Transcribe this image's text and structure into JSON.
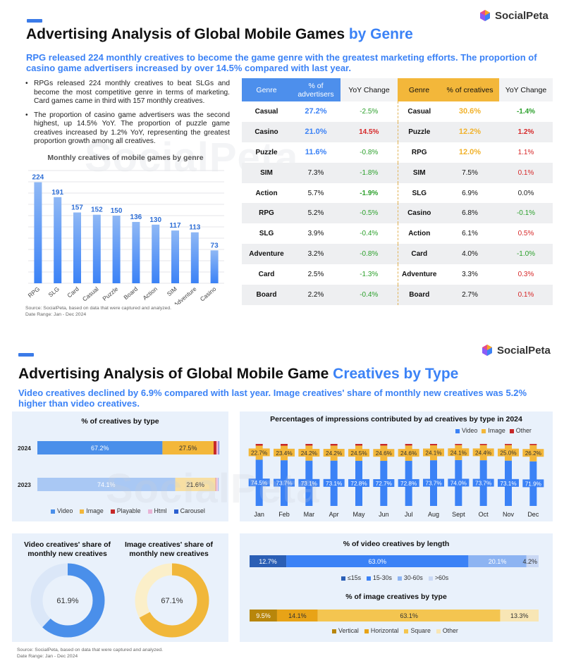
{
  "brand": {
    "name": "SocialPeta",
    "watermark": "SocialPeta"
  },
  "colors": {
    "blue": "#3b82f6",
    "gold": "#f3b73a",
    "red": "#c62828",
    "pink": "#e8b4d6",
    "light_blue": "#a9c8f4"
  },
  "top": {
    "title_main": "Advertising Analysis of Global Mobile Games ",
    "title_hl": "by Genre",
    "headline": "RPG released 224 monthly creatives to become the game genre with the greatest marketing efforts.  The proportion of casino game advertisers increased by over 14.5% compared with last year.",
    "bullets": [
      "RPGs released 224 monthly creatives to beat SLGs and become the most competitive genre in terms of marketing. Card games came in third with 157 monthly creatives.",
      "The proportion of casino game advertisers was the second highest, up 14.5% YoY. The proportion of puzzle game creatives increased by 1.2% YoY, representing the greatest proportion growth among all creatives."
    ],
    "source": "Source: SocialPeta, based on data that were captured and analyzed.",
    "date_range": "Date Range: Jan - Dec 2024",
    "table_headers": [
      "Genre",
      "% of advertisers",
      "YoY Change",
      "Genre",
      "% of creatives",
      "YoY Change"
    ],
    "table_rows": [
      [
        "Casual",
        "27.2%",
        "-2.5%",
        "Casual",
        "30.6%",
        "-1.4%"
      ],
      [
        "Casino",
        "21.0%",
        "14.5%",
        "Puzzle",
        "12.2%",
        "1.2%"
      ],
      [
        "Puzzle",
        "11.6%",
        "-0.8%",
        "RPG",
        "12.0%",
        "1.1%"
      ],
      [
        "SIM",
        "7.3%",
        "-1.8%",
        "SIM",
        "7.5%",
        "0.1%"
      ],
      [
        "Action",
        "5.7%",
        "-1.9%",
        "SLG",
        "6.9%",
        "0.0%"
      ],
      [
        "RPG",
        "5.2%",
        "-0.5%",
        "Casino",
        "6.8%",
        "-0.1%"
      ],
      [
        "SLG",
        "3.9%",
        "-0.4%",
        "Action",
        "6.1%",
        "0.5%"
      ],
      [
        "Adventure",
        "3.2%",
        "-0.8%",
        "Card",
        "4.0%",
        "-1.0%"
      ],
      [
        "Card",
        "2.5%",
        "-1.3%",
        "Adventure",
        "3.3%",
        "0.3%"
      ],
      [
        "Board",
        "2.2%",
        "-0.4%",
        "Board",
        "2.7%",
        "0.1%"
      ]
    ]
  },
  "bottom": {
    "title_main": "Advertising Analysis of Global Mobile Game ",
    "title_hl": "Creatives by Type",
    "headline": "Video creatives declined by 6.9% compared with last year. Image creatives' share of monthly new creatives was 5.2% higher than video creatives.",
    "source": "Source: SocialPeta, based on data that were captured and analyzed.",
    "date_range": "Date Range: Jan - Dec 2024"
  },
  "chart_data": [
    {
      "type": "bar",
      "title": "Monthly creatives of mobile games by genre",
      "categories": [
        "RPG",
        "SLG",
        "Card",
        "Casual",
        "Puzzle",
        "Board",
        "Action",
        "SIM",
        "Adventure",
        "Casino"
      ],
      "values": [
        224,
        191,
        157,
        152,
        150,
        136,
        130,
        117,
        113,
        73
      ],
      "ylim": [
        0,
        250
      ],
      "grid": true
    },
    {
      "type": "bar",
      "title": "% of creatives by type",
      "stacked": true,
      "orientation": "horizontal",
      "categories": [
        "2024",
        "2023"
      ],
      "series": [
        {
          "name": "Video",
          "values": [
            67.2,
            74.1
          ],
          "labels": [
            "67.2%",
            "74.1%"
          ]
        },
        {
          "name": "Image",
          "values": [
            27.5,
            21.6
          ],
          "labels": [
            "27.5%",
            "21.6%"
          ]
        },
        {
          "name": "Playable",
          "values": [
            1.5,
            0.4
          ],
          "labels": [
            "",
            ""
          ]
        },
        {
          "name": "Html",
          "values": [
            1.2,
            1.0
          ],
          "labels": [
            "",
            ""
          ]
        },
        {
          "name": "Carousel",
          "values": [
            0.3,
            0.3
          ],
          "labels": [
            "",
            ""
          ]
        }
      ],
      "legend": "bottom"
    },
    {
      "type": "bar",
      "title": "Percentages of impressions contributed by ad creatives by type in 2024",
      "stacked": true,
      "categories": [
        "Jan",
        "Feb",
        "Mar",
        "Apr",
        "May",
        "Jun",
        "Jul",
        "Aug",
        "Sept",
        "Oct",
        "Nov",
        "Dec"
      ],
      "series": [
        {
          "name": "Video",
          "values": [
            74.5,
            73.7,
            73.1,
            73.1,
            72.8,
            72.7,
            72.8,
            73.7,
            74.0,
            73.7,
            73.1,
            71.9
          ],
          "labels": [
            "74.5%",
            "73.7%",
            "73.1%",
            "73.1%",
            "72.8%",
            "72.7%",
            "72.8%",
            "73.7%",
            "74.0%",
            "73.7%",
            "73.1%",
            "71.9%"
          ]
        },
        {
          "name": "Image",
          "values": [
            22.7,
            23.4,
            24.2,
            24.2,
            24.5,
            24.6,
            24.6,
            24.1,
            24.1,
            24.4,
            25.0,
            26.2
          ],
          "labels": [
            "22.7%",
            "23.4%",
            "24.2%",
            "24.2%",
            "24.5%",
            "24.6%",
            "24.6%",
            "24.1%",
            "24.1%",
            "24.4%",
            "25.0%",
            "26.2%"
          ]
        },
        {
          "name": "Other",
          "values": [
            2.8,
            2.9,
            2.7,
            2.7,
            2.7,
            2.7,
            2.6,
            2.2,
            1.9,
            1.9,
            1.9,
            1.9
          ],
          "labels": [
            "",
            "",
            "",
            "",
            "",
            "",
            "",
            "",
            "",
            "",
            "",
            ""
          ]
        }
      ],
      "legend": "top-right"
    },
    {
      "type": "pie",
      "donut": true,
      "title": "Video creatives' share of monthly new creatives",
      "values": [
        61.9,
        38.1
      ],
      "labels": [
        "61.9%",
        ""
      ]
    },
    {
      "type": "pie",
      "donut": true,
      "title": "Image creatives' share of monthly new creatives",
      "values": [
        67.1,
        32.9
      ],
      "labels": [
        "67.1%",
        ""
      ]
    },
    {
      "type": "bar",
      "title": "% of video creatives by length",
      "stacked": true,
      "orientation": "horizontal",
      "series": [
        {
          "name": "≤15s",
          "values": [
            12.7
          ],
          "labels": [
            "12.7%"
          ]
        },
        {
          "name": "15-30s",
          "values": [
            63.0
          ],
          "labels": [
            "63.0%"
          ]
        },
        {
          "name": "30-60s",
          "values": [
            20.1
          ],
          "labels": [
            "20.1%"
          ]
        },
        {
          "name": ">60s",
          "values": [
            4.2
          ],
          "labels": [
            "4.2%"
          ]
        }
      ],
      "legend": "bottom"
    },
    {
      "type": "bar",
      "title": "% of image creatives by type",
      "stacked": true,
      "orientation": "horizontal",
      "series": [
        {
          "name": "Vertical",
          "values": [
            9.5
          ],
          "labels": [
            "9.5%"
          ]
        },
        {
          "name": "Horizontal",
          "values": [
            14.1
          ],
          "labels": [
            "14.1%"
          ]
        },
        {
          "name": "Square",
          "values": [
            63.1
          ],
          "labels": [
            "63.1%"
          ]
        },
        {
          "name": "Other",
          "values": [
            13.3
          ],
          "labels": [
            "13.3%"
          ]
        }
      ],
      "legend": "bottom"
    }
  ]
}
